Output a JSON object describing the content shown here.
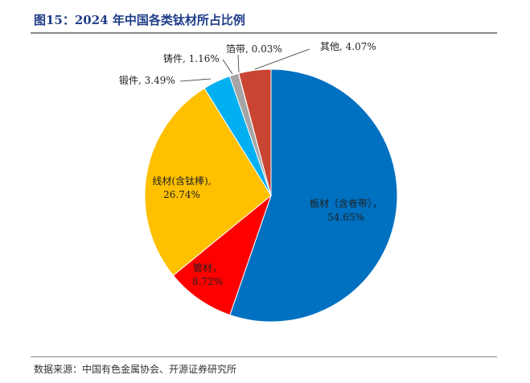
{
  "chart_data": {
    "type": "pie",
    "title": "图15：2024 年中国各类钛材所占比例",
    "source": "数据来源：中国有色金属协会、开源证券研究所",
    "slices": [
      {
        "name": "板材（含卷带）",
        "value": 54.65,
        "label": "54.65%",
        "color": "#0070C0"
      },
      {
        "name": "管材",
        "value": 8.72,
        "label": "8.72%",
        "color": "#FF0000"
      },
      {
        "name": "线材(含钛棒)",
        "value": 26.74,
        "label": "26.74%",
        "color": "#FFC000"
      },
      {
        "name": "锻件",
        "value": 3.49,
        "label": "3.49%",
        "color": "#00B0F0"
      },
      {
        "name": "铸件",
        "value": 1.16,
        "label": "1.16%",
        "color": "#A5A5A5"
      },
      {
        "name": "箔带",
        "value": 0.03,
        "label": "0.03%",
        "color": "#ED7D31"
      },
      {
        "name": "其他",
        "value": 4.07,
        "label": "4.07%",
        "color": "#C94432"
      }
    ]
  }
}
